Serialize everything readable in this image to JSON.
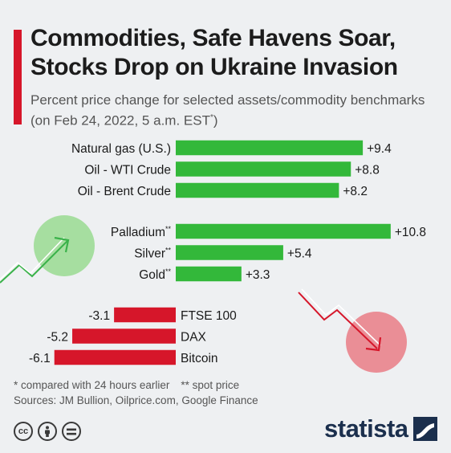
{
  "title": "Commodities, Safe Havens Soar, Stocks Drop on Ukraine Invasion",
  "subtitle": "Percent price change for selected assets/commodity benchmarks (on Feb 24, 2022, 5 a.m. EST",
  "subtitle_mark": "*",
  "subtitle_end": ")",
  "colors": {
    "positive": "#33b83a",
    "negative": "#d6162a",
    "accent": "#d6162a",
    "brand": "#1b2f4d"
  },
  "chart_data": {
    "type": "bar",
    "orientation": "horizontal",
    "groups": [
      {
        "items": [
          {
            "label": "Natural gas (U.S.)",
            "value": 9.4,
            "display": "+9.4"
          },
          {
            "label": "Oil - WTI Crude",
            "value": 8.8,
            "display": "+8.8"
          },
          {
            "label": "Oil - Brent Crude",
            "value": 8.2,
            "display": "+8.2"
          }
        ]
      },
      {
        "items": [
          {
            "label": "Palladium",
            "suffix": "**",
            "value": 10.8,
            "display": "+10.8"
          },
          {
            "label": "Silver",
            "suffix": "**",
            "value": 5.4,
            "display": "+5.4"
          },
          {
            "label": "Gold",
            "suffix": "**",
            "value": 3.3,
            "display": "+3.3"
          }
        ]
      },
      {
        "items": [
          {
            "label": "FTSE 100",
            "value": -3.1,
            "display": "-3.1"
          },
          {
            "label": "DAX",
            "value": -5.2,
            "display": "-5.2"
          },
          {
            "label": "Bitcoin",
            "value": -6.1,
            "display": "-6.1"
          }
        ]
      }
    ]
  },
  "footnotes": {
    "note": "* compared with 24 hours earlier",
    "spot": "** spot price",
    "sources": "Sources: JM Bullion, Oilprice.com, Google Finance"
  },
  "license_icons": [
    "creative-commons-icon",
    "attribution-icon",
    "no-derivatives-icon"
  ],
  "license_cc_text": "cc",
  "brand": "statista"
}
